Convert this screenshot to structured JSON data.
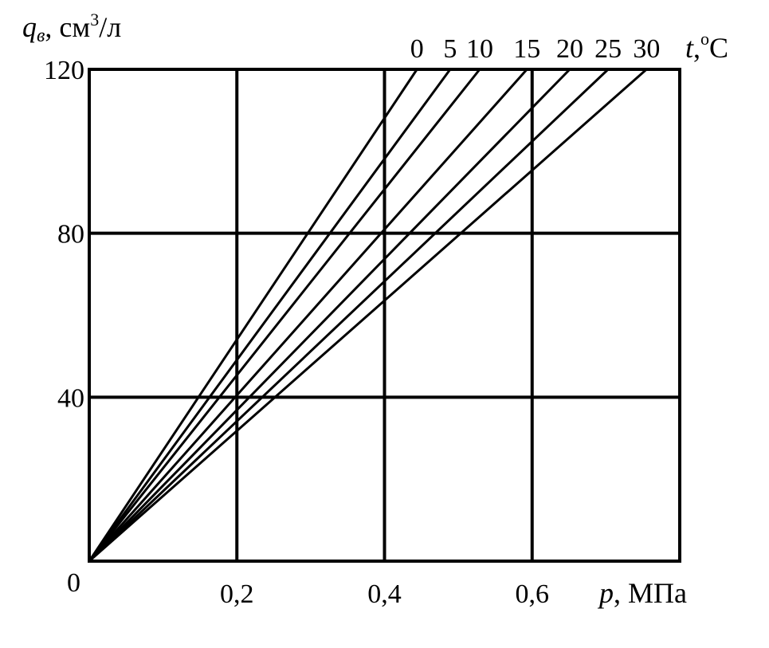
{
  "chart_data": {
    "type": "line",
    "xlabel": {
      "var": "p",
      "unit": ", МПа"
    },
    "ylabel": {
      "var": "q",
      "sub": "в",
      "unit": ", см",
      "sup": "3",
      "unit_tail": "/л"
    },
    "legend_title": {
      "var": "t",
      "sep": ",",
      "sup": "o",
      "unit": "C"
    },
    "xlim": [
      0,
      0.8
    ],
    "ylim": [
      0,
      120
    ],
    "x_ticks": [
      0.2,
      0.4,
      0.6
    ],
    "x_tick_labels": [
      "0,2",
      "0,4",
      "0,6"
    ],
    "y_ticks": [
      40,
      80,
      120
    ],
    "y_tick_labels": [
      "40",
      "80",
      "120"
    ],
    "origin_label": "0",
    "grid": true,
    "series": [
      {
        "name": "0",
        "points": [
          [
            0,
            0
          ],
          [
            0.444,
            120
          ]
        ]
      },
      {
        "name": "5",
        "points": [
          [
            0,
            0
          ],
          [
            0.489,
            120
          ]
        ]
      },
      {
        "name": "10",
        "points": [
          [
            0,
            0
          ],
          [
            0.529,
            120
          ]
        ]
      },
      {
        "name": "15",
        "points": [
          [
            0,
            0
          ],
          [
            0.593,
            120
          ]
        ]
      },
      {
        "name": "20",
        "points": [
          [
            0,
            0
          ],
          [
            0.651,
            120
          ]
        ]
      },
      {
        "name": "25",
        "points": [
          [
            0,
            0
          ],
          [
            0.703,
            120
          ]
        ]
      },
      {
        "name": "30",
        "points": [
          [
            0,
            0
          ],
          [
            0.755,
            120
          ]
        ]
      }
    ]
  }
}
